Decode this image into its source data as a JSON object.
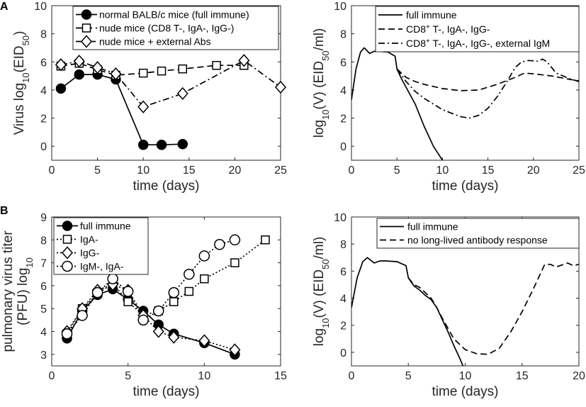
{
  "chart_data": [
    {
      "id": "A-left",
      "type": "line",
      "panel_letter": "A",
      "xlabel": "time (days)",
      "ylabel": "Virus log10(EID50)",
      "xlim": [
        0,
        25
      ],
      "ylim": [
        -1,
        10
      ],
      "xticks": [
        "0",
        "5",
        "10",
        "15",
        "20",
        "25"
      ],
      "yticks": [
        "0",
        "2",
        "4",
        "6",
        "8",
        "10"
      ],
      "legend_position": "top",
      "series": [
        {
          "name": "normal BALB/c mice (full immune)",
          "style": "solid",
          "marker": "filled-circle",
          "x": [
            1,
            3,
            5,
            7,
            10,
            12,
            14.3
          ],
          "y": [
            4.1,
            5.1,
            5.1,
            4.75,
            0.1,
            0.1,
            0.15
          ]
        },
        {
          "name": "nude mice (CD8 T-, IgA-, IgG-)",
          "style": "dashed",
          "marker": "open-square",
          "x": [
            1,
            3,
            5,
            7,
            10,
            12,
            14.3,
            18,
            21
          ],
          "y": [
            5.7,
            5.9,
            5.45,
            5.05,
            5.2,
            5.35,
            5.5,
            5.75,
            5.75
          ]
        },
        {
          "name": "nude mice + external Abs",
          "style": "dashdot",
          "marker": "open-diamond",
          "x": [
            1,
            3,
            5,
            7,
            10,
            14.3,
            21,
            25
          ],
          "y": [
            5.8,
            6.05,
            5.6,
            5.15,
            2.8,
            3.75,
            6.1,
            4.2
          ]
        }
      ]
    },
    {
      "id": "A-right",
      "type": "line",
      "xlabel": "time (days)",
      "ylabel": "log10(V) (EID50/ml)",
      "xlim": [
        0,
        25
      ],
      "ylim": [
        -1,
        10
      ],
      "xticks": [
        "0",
        "5",
        "10",
        "15",
        "20",
        "25"
      ],
      "yticks": [
        "0",
        "2",
        "4",
        "6",
        "8",
        "10"
      ],
      "legend_position": "top",
      "series": [
        {
          "name": "full immune",
          "style": "solid",
          "x": [
            0,
            0.5,
            1,
            1.4,
            2,
            2.5,
            3,
            4,
            4.8,
            5,
            5.5,
            6,
            7,
            8,
            9,
            9.5,
            10
          ],
          "y": [
            3.3,
            5.5,
            6.7,
            7.0,
            6.6,
            6.75,
            6.75,
            6.7,
            6.4,
            5.5,
            4.8,
            4.2,
            3.0,
            1.4,
            0.0,
            -0.5,
            -1.0
          ]
        },
        {
          "name": "CD8+ T-, IgA-, IgG-",
          "style": "dashed",
          "x": [
            5,
            6,
            7,
            8,
            10,
            12,
            14,
            16,
            18,
            19,
            20,
            22,
            24,
            25
          ],
          "y": [
            5.5,
            4.9,
            4.6,
            4.4,
            4.1,
            3.95,
            4.0,
            4.4,
            4.9,
            5.2,
            5.15,
            5.0,
            4.75,
            4.65
          ]
        },
        {
          "name": "CD8+ T-, IgA-, IgG-, external IgM",
          "style": "dashdot",
          "x": [
            5,
            6,
            7,
            8,
            10,
            12,
            13,
            14,
            15,
            16,
            17,
            18,
            18.7,
            19.5,
            20.5,
            21,
            21.5,
            22.5,
            24,
            25
          ],
          "y": [
            5.5,
            4.6,
            3.9,
            3.4,
            2.6,
            2.1,
            2.0,
            2.2,
            2.7,
            3.5,
            4.5,
            5.6,
            6.0,
            6.1,
            6.05,
            6.2,
            6.0,
            5.2,
            4.8,
            4.6
          ]
        }
      ]
    },
    {
      "id": "B-left",
      "type": "line",
      "panel_letter": "B",
      "xlabel": "time (days)",
      "ylabel": "pulmonary virus titer (PFU) log10",
      "ylabel_line1": "pulmonary virus titer",
      "xlim": [
        0,
        15
      ],
      "ylim": [
        2.5,
        9
      ],
      "xticks": [
        "0",
        "5",
        "10",
        "15"
      ],
      "yticks": [
        "3",
        "4",
        "5",
        "6",
        "7",
        "8",
        "9"
      ],
      "legend_position": "top-left",
      "series": [
        {
          "name": "full immune",
          "style": "solid",
          "marker": "filled-circle",
          "x": [
            1,
            2,
            3,
            4,
            5,
            6,
            7,
            8,
            10,
            12
          ],
          "y": [
            3.7,
            4.9,
            5.6,
            5.85,
            5.4,
            4.9,
            4.3,
            3.9,
            3.5,
            3.0
          ]
        },
        {
          "name": "IgA-",
          "style": "dotted",
          "marker": "open-square",
          "x": [
            1,
            2,
            3,
            4,
            5,
            6,
            7,
            8,
            9,
            10,
            12,
            14
          ],
          "y": [
            3.9,
            5.0,
            5.65,
            6.1,
            5.3,
            4.7,
            4.9,
            5.3,
            5.75,
            6.3,
            7.0,
            8.0
          ]
        },
        {
          "name": "IgG-",
          "style": "dotted",
          "marker": "open-diamond",
          "x": [
            1,
            2,
            3,
            4,
            5,
            6,
            7,
            8,
            10,
            12
          ],
          "y": [
            4.0,
            5.0,
            5.8,
            6.05,
            5.8,
            4.7,
            4.0,
            3.75,
            3.6,
            3.2
          ]
        },
        {
          "name": "IgM-, IgA-",
          "style": "dotted",
          "marker": "open-circle",
          "x": [
            1,
            2,
            3,
            4,
            5,
            6,
            7,
            8,
            9,
            10,
            11,
            12
          ],
          "y": [
            3.9,
            4.7,
            5.7,
            6.3,
            5.75,
            4.5,
            4.9,
            5.7,
            6.5,
            7.3,
            7.8,
            8.0
          ]
        }
      ]
    },
    {
      "id": "B-right",
      "type": "line",
      "xlabel": "time (days)",
      "ylabel": "log10(V) (EID50/ml)",
      "xlim": [
        0,
        20
      ],
      "ylim": [
        -1,
        10
      ],
      "xticks": [
        "0",
        "5",
        "10",
        "15",
        "20"
      ],
      "yticks": [
        "0",
        "2",
        "4",
        "6",
        "8",
        "10"
      ],
      "legend_position": "top-right",
      "series": [
        {
          "name": "full immune",
          "style": "solid",
          "x": [
            0,
            0.5,
            1,
            1.4,
            2,
            2.5,
            3,
            4,
            4.8,
            5,
            5.5,
            6,
            6.5,
            7,
            7.5,
            8,
            8.5,
            9,
            9.5,
            9.8
          ],
          "y": [
            3.3,
            5.5,
            6.7,
            7.0,
            6.6,
            6.75,
            6.75,
            6.7,
            6.4,
            5.5,
            4.9,
            4.6,
            4.2,
            3.9,
            3.3,
            2.4,
            1.5,
            0.5,
            -0.4,
            -1.0
          ]
        },
        {
          "name": "no long-lived antibody response",
          "style": "dashed",
          "x": [
            5,
            5.5,
            6,
            6.5,
            7,
            7.5,
            8,
            9,
            10,
            11,
            12,
            13,
            14,
            15,
            16,
            16.5,
            17,
            17.5,
            18,
            19,
            19.5,
            20
          ],
          "y": [
            5.5,
            5.0,
            4.8,
            4.4,
            4.0,
            3.3,
            2.5,
            1.0,
            0.2,
            -0.1,
            -0.15,
            0.3,
            1.5,
            3.0,
            4.7,
            5.6,
            6.5,
            6.5,
            6.3,
            6.6,
            6.4,
            6.5
          ]
        }
      ]
    }
  ]
}
